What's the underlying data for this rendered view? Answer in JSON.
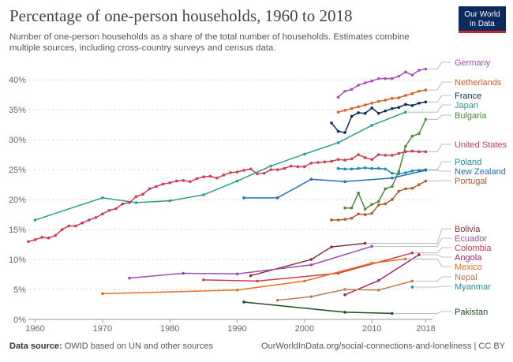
{
  "logo": {
    "line1": "Our World",
    "line2": "in Data"
  },
  "footer": {
    "source_label": "Data source:",
    "source_text": "OWID based on UN and other sources",
    "url": "OurWorldInData.org/social-connections-and-loneliness | CC BY"
  },
  "chart_data": {
    "type": "line",
    "title": "Percentage of one-person households, 1960 to 2018",
    "subtitle": "Number of one-person households as a share of the total number of households. Estimates combine multiple sources, including cross-country surveys and census data.",
    "xlim": [
      1959,
      2019
    ],
    "ylim": [
      0,
      42
    ],
    "x_ticks": [
      1960,
      1970,
      1980,
      1990,
      2000,
      2010,
      2018
    ],
    "y_ticks": [
      0,
      5,
      10,
      15,
      20,
      25,
      30,
      35,
      40
    ],
    "y_tick_labels": [
      "0%",
      "5%",
      "10%",
      "15%",
      "20%",
      "25%",
      "30%",
      "35%",
      "40%"
    ],
    "grid": "horizontal dashed",
    "legend": "right",
    "series": [
      {
        "name": "Germany",
        "color": "#a652ba",
        "points": [
          [
            2005,
            37.1
          ],
          [
            2006,
            38.1
          ],
          [
            2007,
            38.4
          ],
          [
            2008,
            39.1
          ],
          [
            2009,
            39.5
          ],
          [
            2010,
            39.8
          ],
          [
            2011,
            40.2
          ],
          [
            2012,
            40.2
          ],
          [
            2013,
            40.2
          ],
          [
            2014,
            40.6
          ],
          [
            2015,
            41.3
          ],
          [
            2016,
            40.8
          ],
          [
            2017,
            41.6
          ],
          [
            2018,
            41.8
          ]
        ]
      },
      {
        "name": "Netherlands",
        "color": "#dc5e2b",
        "points": [
          [
            2005,
            34.6
          ],
          [
            2006,
            34.9
          ],
          [
            2007,
            35.2
          ],
          [
            2008,
            35.5
          ],
          [
            2009,
            35.8
          ],
          [
            2010,
            36.1
          ],
          [
            2011,
            36.4
          ],
          [
            2012,
            36.6
          ],
          [
            2013,
            36.9
          ],
          [
            2014,
            37.0
          ],
          [
            2015,
            37.4
          ],
          [
            2016,
            37.7
          ],
          [
            2017,
            38.1
          ],
          [
            2018,
            38.3
          ]
        ]
      },
      {
        "name": "France",
        "color": "#0d2a5e",
        "points": [
          [
            2004,
            32.8
          ],
          [
            2005,
            31.4
          ],
          [
            2006,
            31.2
          ],
          [
            2007,
            33.9
          ],
          [
            2008,
            34.5
          ],
          [
            2009,
            34.4
          ],
          [
            2010,
            35.3
          ],
          [
            2011,
            34.4
          ],
          [
            2012,
            34.8
          ],
          [
            2013,
            35.2
          ],
          [
            2014,
            35.4
          ],
          [
            2015,
            35.9
          ],
          [
            2016,
            35.7
          ],
          [
            2017,
            36.1
          ],
          [
            2018,
            36.3
          ]
        ]
      },
      {
        "name": "Japan",
        "color": "#2a9c8e",
        "points": [
          [
            1960,
            16.6
          ],
          [
            1970,
            20.3
          ],
          [
            1975,
            19.5
          ],
          [
            1980,
            19.8
          ],
          [
            1985,
            20.8
          ],
          [
            1990,
            23.1
          ],
          [
            1995,
            25.6
          ],
          [
            2000,
            27.6
          ],
          [
            2005,
            29.5
          ],
          [
            2010,
            32.4
          ],
          [
            2015,
            34.6
          ]
        ]
      },
      {
        "name": "Bulgaria",
        "color": "#4c8a3d",
        "points": [
          [
            2006,
            18.6
          ],
          [
            2007,
            18.6
          ],
          [
            2008,
            21.1
          ],
          [
            2009,
            18.4
          ],
          [
            2010,
            19.2
          ],
          [
            2011,
            19.7
          ],
          [
            2012,
            21.8
          ],
          [
            2013,
            22.2
          ],
          [
            2014,
            24.7
          ],
          [
            2015,
            28.9
          ],
          [
            2016,
            30.6
          ],
          [
            2017,
            31.0
          ],
          [
            2018,
            33.4
          ]
        ]
      },
      {
        "name": "United States",
        "color": "#cf3a55",
        "points": [
          [
            1959,
            13.0
          ],
          [
            1960,
            13.3
          ],
          [
            1961,
            13.7
          ],
          [
            1962,
            13.6
          ],
          [
            1963,
            14.0
          ],
          [
            1964,
            15.0
          ],
          [
            1965,
            15.6
          ],
          [
            1966,
            15.6
          ],
          [
            1967,
            16.1
          ],
          [
            1968,
            16.6
          ],
          [
            1969,
            17.0
          ],
          [
            1970,
            17.6
          ],
          [
            1971,
            18.2
          ],
          [
            1972,
            18.5
          ],
          [
            1973,
            19.3
          ],
          [
            1974,
            19.5
          ],
          [
            1975,
            20.5
          ],
          [
            1976,
            20.9
          ],
          [
            1977,
            21.8
          ],
          [
            1978,
            22.2
          ],
          [
            1979,
            22.6
          ],
          [
            1980,
            22.8
          ],
          [
            1981,
            23.1
          ],
          [
            1982,
            23.2
          ],
          [
            1983,
            23.0
          ],
          [
            1984,
            23.5
          ],
          [
            1985,
            23.8
          ],
          [
            1986,
            23.9
          ],
          [
            1987,
            23.6
          ],
          [
            1988,
            24.1
          ],
          [
            1989,
            24.5
          ],
          [
            1990,
            24.6
          ],
          [
            1991,
            24.9
          ],
          [
            1992,
            25.1
          ],
          [
            1993,
            24.3
          ],
          [
            1994,
            24.4
          ],
          [
            1995,
            25.0
          ],
          [
            1996,
            25.0
          ],
          [
            1997,
            25.2
          ],
          [
            1998,
            25.6
          ],
          [
            1999,
            25.5
          ],
          [
            2000,
            25.5
          ],
          [
            2001,
            26.1
          ],
          [
            2002,
            26.2
          ],
          [
            2003,
            26.3
          ],
          [
            2004,
            26.4
          ],
          [
            2005,
            26.7
          ],
          [
            2006,
            26.6
          ],
          [
            2007,
            26.8
          ],
          [
            2008,
            27.5
          ],
          [
            2009,
            27.0
          ],
          [
            2010,
            26.7
          ],
          [
            2011,
            27.5
          ],
          [
            2012,
            27.4
          ],
          [
            2013,
            27.4
          ],
          [
            2014,
            27.7
          ],
          [
            2015,
            28.0
          ],
          [
            2016,
            28.1
          ],
          [
            2017,
            28.0
          ],
          [
            2018,
            28.0
          ]
        ]
      },
      {
        "name": "Poland",
        "color": "#1c8ab0",
        "points": [
          [
            2005,
            25.2
          ],
          [
            2006,
            25.1
          ],
          [
            2007,
            25.1
          ],
          [
            2008,
            25.2
          ],
          [
            2009,
            25.3
          ],
          [
            2010,
            25.2
          ],
          [
            2011,
            25.2
          ],
          [
            2012,
            25.1
          ],
          [
            2013,
            24.4
          ],
          [
            2014,
            24.3
          ],
          [
            2015,
            24.5
          ],
          [
            2016,
            24.8
          ],
          [
            2017,
            24.9
          ],
          [
            2018,
            25.0
          ]
        ]
      },
      {
        "name": "New Zealand",
        "color": "#286bbb",
        "points": [
          [
            1991,
            20.3
          ],
          [
            1996,
            20.3
          ],
          [
            2001,
            23.4
          ],
          [
            2006,
            23.0
          ],
          [
            2013,
            23.6
          ],
          [
            2018,
            24.9
          ]
        ]
      },
      {
        "name": "Portugal",
        "color": "#b05a2d",
        "points": [
          [
            2004,
            16.6
          ],
          [
            2005,
            16.6
          ],
          [
            2006,
            16.7
          ],
          [
            2007,
            16.9
          ],
          [
            2008,
            17.6
          ],
          [
            2009,
            17.5
          ],
          [
            2010,
            17.7
          ],
          [
            2011,
            19.1
          ],
          [
            2012,
            19.3
          ],
          [
            2013,
            20.0
          ],
          [
            2014,
            21.4
          ],
          [
            2015,
            21.8
          ],
          [
            2016,
            21.9
          ],
          [
            2017,
            22.5
          ],
          [
            2018,
            23.1
          ]
        ]
      },
      {
        "name": "Bolivia",
        "color": "#883039",
        "points": [
          [
            1992,
            7.3
          ],
          [
            2001,
            10.0
          ],
          [
            2004,
            12.1
          ],
          [
            2009,
            12.7
          ]
        ]
      },
      {
        "name": "Ecuador",
        "color": "#9a4cb5",
        "points": [
          [
            1974,
            6.9
          ],
          [
            1982,
            7.7
          ],
          [
            1990,
            7.6
          ],
          [
            2001,
            9.1
          ],
          [
            2010,
            12.2
          ]
        ]
      },
      {
        "name": "Colombia",
        "color": "#cf3a55",
        "points": [
          [
            1985,
            6.6
          ],
          [
            1993,
            6.4
          ],
          [
            2005,
            7.7
          ],
          [
            2016,
            11.1
          ]
        ]
      },
      {
        "name": "Angola",
        "color": "#a2247b",
        "points": [
          [
            2006,
            4.1
          ],
          [
            2011,
            6.5
          ],
          [
            2017,
            10.8
          ]
        ]
      },
      {
        "name": "Mexico",
        "color": "#e56e1f",
        "points": [
          [
            1970,
            4.3
          ],
          [
            1990,
            4.9
          ],
          [
            2000,
            6.4
          ],
          [
            2010,
            9.4
          ],
          [
            2015,
            10.1
          ]
        ]
      },
      {
        "name": "Nepal",
        "color": "#bd7b53",
        "points": [
          [
            1996,
            3.2
          ],
          [
            2001,
            3.8
          ],
          [
            2006,
            5.0
          ],
          [
            2011,
            4.9
          ],
          [
            2016,
            6.4
          ]
        ]
      },
      {
        "name": "Myanmar",
        "color": "#1f8fa0",
        "points": [
          [
            2016,
            5.4
          ]
        ]
      },
      {
        "name": "Pakistan",
        "color": "#1f4d21",
        "points": [
          [
            1991,
            2.9
          ],
          [
            2006,
            1.2
          ],
          [
            2013,
            1.0
          ]
        ]
      }
    ]
  }
}
